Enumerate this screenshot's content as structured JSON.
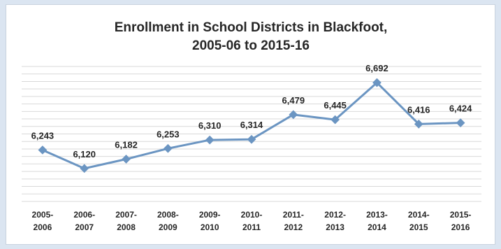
{
  "chart_data": {
    "type": "line",
    "title": [
      "Enrollment in School Districts in Blackfoot,",
      "2005-06 to 2015-16"
    ],
    "xlabel": "",
    "ylabel": "",
    "categories": [
      [
        "2005-",
        "2006"
      ],
      [
        "2006-",
        "2007"
      ],
      [
        "2007-",
        "2008"
      ],
      [
        "2008-",
        "2009"
      ],
      [
        "2009-",
        "2010"
      ],
      [
        "2010-",
        "2011"
      ],
      [
        "2011-",
        "2012"
      ],
      [
        "2012-",
        "2013"
      ],
      [
        "2013-",
        "2014"
      ],
      [
        "2014-",
        "2015"
      ],
      [
        "2015-",
        "2016"
      ]
    ],
    "series": [
      {
        "values": [
          6243,
          6120,
          6182,
          6253,
          6310,
          6314,
          6479,
          6445,
          6692,
          6416,
          6424
        ],
        "labels": [
          "6,243",
          "6,120",
          "6,182",
          "6,253",
          "6,310",
          "6,314",
          "6,479",
          "6,445",
          "6,692",
          "6,416",
          "6,424"
        ],
        "color": "#6b95c2"
      }
    ],
    "ylim": [
      5900,
      6800
    ],
    "grid": true,
    "grid_step": 50,
    "legend": "none"
  }
}
